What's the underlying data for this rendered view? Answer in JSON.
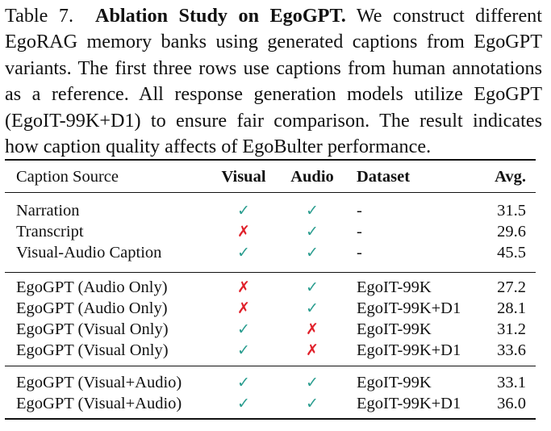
{
  "caption": {
    "label": "Table 7.",
    "title": "Ablation Study on EgoGPT.",
    "text": "We construct different EgoRAG memory banks using generated captions from EgoGPT variants. The first three rows use captions from human annotations as a reference. All response generation models utilize EgoGPT (EgoIT-99K+D1) to ensure fair comparison. The result indicates how caption quality affects of EgoBulter performance."
  },
  "table": {
    "headers": {
      "source": "Caption Source",
      "visual": "Visual",
      "audio": "Audio",
      "dataset": "Dataset",
      "avg": "Avg."
    },
    "symbols": {
      "check": "✓",
      "cross": "✗"
    },
    "colors": {
      "check": "#2a9d8f",
      "cross": "#e0202a"
    },
    "rows": [
      {
        "source": "Narration",
        "visual": true,
        "audio": true,
        "dataset": "-",
        "avg": "31.5"
      },
      {
        "source": "Transcript",
        "visual": false,
        "audio": true,
        "dataset": "-",
        "avg": "29.6"
      },
      {
        "source": "Visual-Audio Caption",
        "visual": true,
        "audio": true,
        "dataset": "-",
        "avg": "45.5"
      },
      {
        "source": "EgoGPT (Audio Only)",
        "visual": false,
        "audio": true,
        "dataset": "EgoIT-99K",
        "avg": "27.2"
      },
      {
        "source": "EgoGPT (Audio Only)",
        "visual": false,
        "audio": true,
        "dataset": "EgoIT-99K+D1",
        "avg": "28.1"
      },
      {
        "source": "EgoGPT (Visual Only)",
        "visual": true,
        "audio": false,
        "dataset": "EgoIT-99K",
        "avg": "31.2"
      },
      {
        "source": "EgoGPT (Visual Only)",
        "visual": true,
        "audio": false,
        "dataset": "EgoIT-99K+D1",
        "avg": "33.6"
      },
      {
        "source": "EgoGPT (Visual+Audio)",
        "visual": true,
        "audio": true,
        "dataset": "EgoIT-99K",
        "avg": "33.1"
      },
      {
        "source": "EgoGPT (Visual+Audio)",
        "visual": true,
        "audio": true,
        "dataset": "EgoIT-99K+D1",
        "avg": "36.0"
      }
    ]
  }
}
